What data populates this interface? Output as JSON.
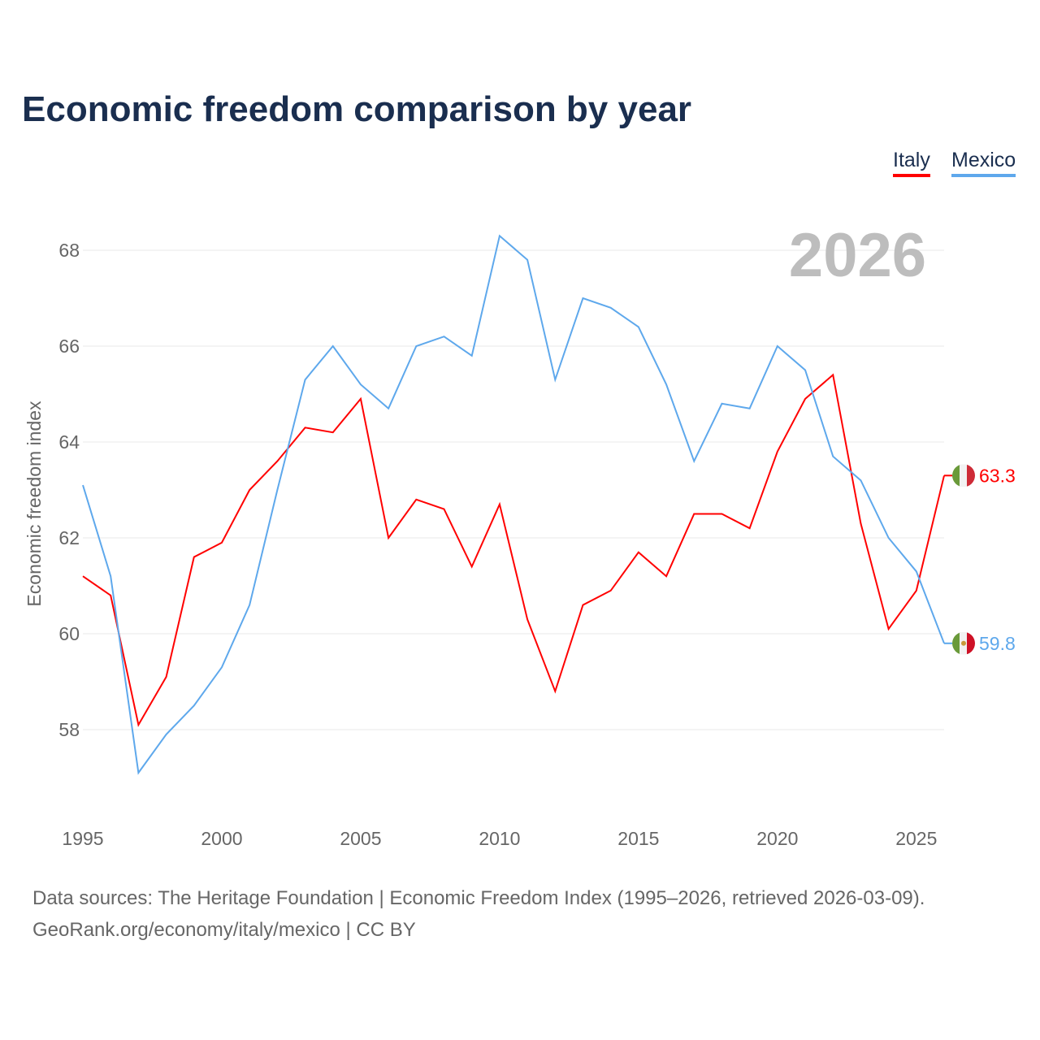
{
  "chart_data": {
    "type": "line",
    "title": "Economic freedom comparison by year",
    "xlabel": "",
    "ylabel": "Economic freedom index",
    "year_watermark": "2026",
    "x": [
      1995,
      1996,
      1997,
      1998,
      1999,
      2000,
      2001,
      2002,
      2003,
      2004,
      2005,
      2006,
      2007,
      2008,
      2009,
      2010,
      2011,
      2012,
      2013,
      2014,
      2015,
      2016,
      2017,
      2018,
      2019,
      2020,
      2021,
      2022,
      2023,
      2024,
      2025,
      2026
    ],
    "xlim": [
      1995,
      2026
    ],
    "ylim": [
      56.5,
      69
    ],
    "xticks": [
      "1995",
      "2000",
      "2005",
      "2010",
      "2015",
      "2020",
      "2025"
    ],
    "yticks": [
      "58",
      "60",
      "62",
      "64",
      "66",
      "68"
    ],
    "grid": true,
    "legend_position": "top-right",
    "series": [
      {
        "name": "Italy",
        "color": "#ff0000",
        "end_label": "63.3",
        "values": [
          61.2,
          60.8,
          58.1,
          59.1,
          61.6,
          61.9,
          63.0,
          63.6,
          64.3,
          64.2,
          64.9,
          62.0,
          62.8,
          62.6,
          61.4,
          62.7,
          60.3,
          58.8,
          60.6,
          60.9,
          61.7,
          61.2,
          62.5,
          62.5,
          62.2,
          63.8,
          64.9,
          65.4,
          62.3,
          60.1,
          60.9,
          63.3
        ]
      },
      {
        "name": "Mexico",
        "color": "#5ea8ec",
        "end_label": "59.8",
        "values": [
          63.1,
          61.2,
          57.1,
          57.9,
          58.5,
          59.3,
          60.6,
          63.0,
          65.3,
          66.0,
          65.2,
          64.7,
          66.0,
          66.2,
          65.8,
          68.3,
          67.8,
          65.3,
          67.0,
          66.8,
          66.4,
          65.2,
          63.6,
          64.8,
          64.7,
          66.0,
          65.5,
          63.7,
          63.2,
          62.0,
          61.3,
          59.8
        ]
      }
    ]
  },
  "footer": {
    "line1": "Data sources: The Heritage Foundation | Economic Freedom Index (1995–2026, retrieved 2026-03-09).",
    "line2": "GeoRank.org/economy/italy/mexico | CC BY"
  }
}
